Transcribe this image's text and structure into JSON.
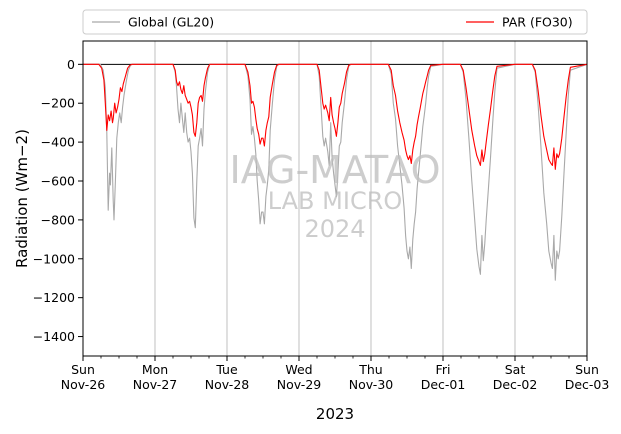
{
  "chart_data": {
    "type": "line",
    "title": "",
    "xlabel": "2023",
    "ylabel": "Radiation (Wm−2)",
    "ylim": [
      -1500,
      120
    ],
    "yticks": [
      0,
      -200,
      -400,
      -600,
      -800,
      -1000,
      -1200,
      -1400
    ],
    "xlim": [
      0,
      7
    ],
    "xticks": [
      {
        "x": 0,
        "day": "Sun",
        "date": "Nov-26"
      },
      {
        "x": 1,
        "day": "Mon",
        "date": "Nov-27"
      },
      {
        "x": 2,
        "day": "Tue",
        "date": "Nov-28"
      },
      {
        "x": 3,
        "day": "Wed",
        "date": "Nov-29"
      },
      {
        "x": 4,
        "day": "Thu",
        "date": "Nov-30"
      },
      {
        "x": 5,
        "day": "Fri",
        "date": "Dec-01"
      },
      {
        "x": 6,
        "day": "Sat",
        "date": "Dec-02"
      },
      {
        "x": 7,
        "day": "Sun",
        "date": "Dec-03"
      }
    ],
    "grid": "x-major",
    "zero_line": true,
    "legend": {
      "placement": "above-plot",
      "columns": 2
    },
    "watermark": {
      "line1": "IAG-MATAO",
      "line2": "LAB MICRO",
      "line3": "2024"
    },
    "series": [
      {
        "name": "Global (GL20)",
        "color": "#a9a9a9",
        "x": [
          0,
          0.24,
          0.28,
          0.31,
          0.33,
          0.35,
          0.37,
          0.38,
          0.4,
          0.42,
          0.43,
          0.45,
          0.47,
          0.49,
          0.51,
          0.53,
          0.55,
          0.57,
          0.6,
          0.63,
          0.66,
          0.69,
          0.72,
          1.0,
          1.25,
          1.28,
          1.3,
          1.32,
          1.34,
          1.36,
          1.38,
          1.4,
          1.42,
          1.44,
          1.46,
          1.48,
          1.5,
          1.52,
          1.54,
          1.56,
          1.58,
          1.6,
          1.62,
          1.64,
          1.66,
          1.68,
          1.7,
          1.73,
          1.76,
          2.0,
          2.25,
          2.29,
          2.32,
          2.34,
          2.36,
          2.38,
          2.4,
          2.42,
          2.44,
          2.46,
          2.48,
          2.5,
          2.52,
          2.54,
          2.56,
          2.58,
          2.6,
          2.63,
          2.66,
          2.69,
          2.72,
          3.0,
          3.25,
          3.28,
          3.31,
          3.33,
          3.35,
          3.37,
          3.4,
          3.42,
          3.44,
          3.46,
          3.48,
          3.5,
          3.52,
          3.54,
          3.56,
          3.58,
          3.6,
          3.63,
          3.66,
          3.69,
          3.72,
          4.0,
          4.24,
          4.28,
          4.31,
          4.34,
          4.37,
          4.4,
          4.43,
          4.46,
          4.48,
          4.5,
          4.52,
          4.54,
          4.56,
          4.58,
          4.6,
          4.62,
          4.64,
          4.66,
          4.68,
          4.7,
          4.72,
          4.74,
          4.76,
          4.78,
          4.8,
          4.83,
          5.0,
          5.24,
          5.28,
          5.32,
          5.36,
          5.4,
          5.44,
          5.47,
          5.5,
          5.52,
          5.54,
          5.56,
          5.58,
          5.6,
          5.63,
          5.66,
          5.69,
          5.72,
          5.75,
          6.0,
          6.24,
          6.28,
          6.32,
          6.36,
          6.4,
          6.44,
          6.47,
          6.5,
          6.52,
          6.54,
          6.56,
          6.58,
          6.6,
          6.62,
          6.65,
          6.68,
          6.71,
          6.74,
          6.77,
          7.0
        ],
        "values": [
          0,
          0,
          -30,
          -120,
          -350,
          -750,
          -560,
          -620,
          -430,
          -700,
          -800,
          -600,
          -380,
          -300,
          -250,
          -300,
          -220,
          -160,
          -90,
          -30,
          -5,
          0,
          0,
          0,
          0,
          -40,
          -120,
          -230,
          -300,
          -200,
          -280,
          -350,
          -250,
          -350,
          -400,
          -380,
          -450,
          -560,
          -790,
          -840,
          -600,
          -420,
          -380,
          -330,
          -420,
          -230,
          -140,
          -40,
          0,
          0,
          0,
          -60,
          -180,
          -360,
          -320,
          -380,
          -460,
          -600,
          -700,
          -820,
          -760,
          -760,
          -820,
          -680,
          -620,
          -540,
          -340,
          -200,
          -80,
          -10,
          0,
          0,
          0,
          -60,
          -240,
          -370,
          -420,
          -380,
          -450,
          -520,
          -300,
          -480,
          -560,
          -620,
          -680,
          -560,
          -420,
          -400,
          -300,
          -200,
          -80,
          -10,
          0,
          0,
          0,
          -50,
          -200,
          -280,
          -420,
          -520,
          -620,
          -740,
          -880,
          -960,
          -1000,
          -940,
          -1050,
          -900,
          -820,
          -760,
          -640,
          -560,
          -480,
          -400,
          -320,
          -260,
          -200,
          -120,
          -60,
          -10,
          0,
          0,
          -40,
          -180,
          -380,
          -600,
          -800,
          -950,
          -1040,
          -1080,
          -880,
          -1010,
          -920,
          -800,
          -640,
          -480,
          -300,
          -140,
          -20,
          0,
          0,
          -40,
          -200,
          -420,
          -660,
          -820,
          -960,
          -1020,
          -1050,
          -880,
          -1110,
          -960,
          -1000,
          -960,
          -780,
          -560,
          -360,
          -160,
          -30,
          0
        ]
      },
      {
        "name": "PAR (FO30)",
        "color": "#ff0000",
        "x": [
          0,
          0.22,
          0.26,
          0.29,
          0.31,
          0.33,
          0.35,
          0.37,
          0.39,
          0.41,
          0.42,
          0.44,
          0.46,
          0.48,
          0.5,
          0.52,
          0.54,
          0.56,
          0.59,
          0.62,
          0.65,
          0.68,
          0.72,
          1.0,
          1.25,
          1.28,
          1.3,
          1.32,
          1.34,
          1.36,
          1.38,
          1.4,
          1.42,
          1.44,
          1.46,
          1.48,
          1.5,
          1.52,
          1.54,
          1.56,
          1.58,
          1.6,
          1.62,
          1.64,
          1.66,
          1.68,
          1.7,
          1.73,
          1.76,
          2.0,
          2.25,
          2.29,
          2.32,
          2.34,
          2.36,
          2.38,
          2.4,
          2.42,
          2.44,
          2.46,
          2.48,
          2.5,
          2.52,
          2.54,
          2.56,
          2.58,
          2.6,
          2.63,
          2.66,
          2.69,
          2.72,
          3.0,
          3.25,
          3.28,
          3.31,
          3.33,
          3.35,
          3.37,
          3.4,
          3.42,
          3.44,
          3.46,
          3.48,
          3.5,
          3.52,
          3.54,
          3.56,
          3.58,
          3.6,
          3.63,
          3.66,
          3.69,
          3.72,
          4.0,
          4.24,
          4.28,
          4.31,
          4.34,
          4.37,
          4.4,
          4.43,
          4.46,
          4.48,
          4.5,
          4.52,
          4.54,
          4.56,
          4.58,
          4.6,
          4.62,
          4.64,
          4.66,
          4.68,
          4.7,
          4.72,
          4.74,
          4.76,
          4.78,
          4.8,
          4.83,
          5.0,
          5.24,
          5.28,
          5.32,
          5.36,
          5.4,
          5.44,
          5.47,
          5.5,
          5.52,
          5.54,
          5.56,
          5.58,
          5.6,
          5.63,
          5.66,
          5.69,
          5.72,
          5.75,
          6.0,
          6.24,
          6.28,
          6.32,
          6.36,
          6.4,
          6.44,
          6.47,
          6.5,
          6.52,
          6.54,
          6.56,
          6.58,
          6.6,
          6.62,
          6.65,
          6.68,
          6.71,
          6.74,
          6.77,
          7.0
        ],
        "values": [
          0,
          0,
          -20,
          -80,
          -200,
          -340,
          -260,
          -290,
          -240,
          -300,
          -280,
          -200,
          -250,
          -220,
          -180,
          -120,
          -140,
          -100,
          -60,
          -20,
          -5,
          0,
          0,
          0,
          0,
          -30,
          -90,
          -110,
          -90,
          -130,
          -150,
          -110,
          -160,
          -180,
          -200,
          -190,
          -220,
          -260,
          -350,
          -370,
          -300,
          -200,
          -170,
          -160,
          -190,
          -110,
          -70,
          -20,
          0,
          0,
          0,
          -40,
          -110,
          -200,
          -190,
          -220,
          -280,
          -330,
          -360,
          -410,
          -380,
          -380,
          -420,
          -340,
          -300,
          -270,
          -170,
          -100,
          -40,
          -5,
          0,
          0,
          0,
          -30,
          -130,
          -200,
          -230,
          -210,
          -250,
          -290,
          -170,
          -260,
          -300,
          -330,
          -370,
          -300,
          -220,
          -200,
          -150,
          -100,
          -40,
          -5,
          0,
          0,
          0,
          -30,
          -110,
          -160,
          -240,
          -300,
          -350,
          -390,
          -440,
          -470,
          -490,
          -470,
          -510,
          -440,
          -400,
          -370,
          -310,
          -270,
          -230,
          -190,
          -150,
          -120,
          -90,
          -60,
          -30,
          -5,
          0,
          0,
          -30,
          -120,
          -230,
          -340,
          -420,
          -470,
          -500,
          -520,
          -440,
          -500,
          -460,
          -400,
          -310,
          -230,
          -140,
          -60,
          -10,
          0,
          0,
          -30,
          -130,
          -260,
          -370,
          -440,
          -490,
          -510,
          -520,
          -430,
          -540,
          -460,
          -480,
          -460,
          -380,
          -270,
          -170,
          -80,
          -15,
          0
        ]
      }
    ]
  }
}
